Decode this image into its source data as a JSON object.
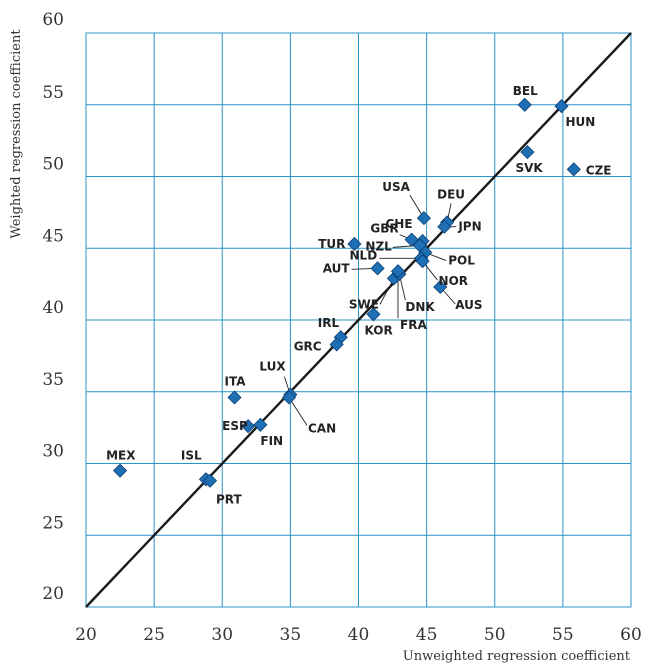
{
  "chart_data": {
    "type": "scatter",
    "xlabel": "Unweighted regression coefficient",
    "ylabel": "Weighted regression coefficient",
    "xlim": [
      20,
      60
    ],
    "ylim": [
      20,
      60
    ],
    "x_ticks": [
      20,
      25,
      30,
      35,
      40,
      45,
      50,
      55,
      60
    ],
    "y_ticks": [
      20,
      25,
      30,
      35,
      40,
      45,
      50,
      55,
      60
    ],
    "grid": true,
    "reference_line": "45-degree line y = x",
    "marker_color": "#1f6fb5",
    "grid_color": "#2b93c8",
    "points": [
      {
        "label": "BEL",
        "x": 52.2,
        "y": 55.0
      },
      {
        "label": "HUN",
        "x": 54.9,
        "y": 54.9
      },
      {
        "label": "SVK",
        "x": 52.4,
        "y": 51.7
      },
      {
        "label": "CZE",
        "x": 55.8,
        "y": 50.5
      },
      {
        "label": "USA",
        "x": 44.8,
        "y": 47.1
      },
      {
        "label": "DEU",
        "x": 46.5,
        "y": 46.8
      },
      {
        "label": "JPN",
        "x": 46.3,
        "y": 46.5
      },
      {
        "label": "CHE",
        "x": 44.7,
        "y": 45.5
      },
      {
        "label": "GBR",
        "x": 43.9,
        "y": 45.6
      },
      {
        "label": "NZL",
        "x": 44.5,
        "y": 45.2
      },
      {
        "label": "TUR",
        "x": 39.7,
        "y": 45.3
      },
      {
        "label": "POL",
        "x": 44.9,
        "y": 44.7
      },
      {
        "label": "NLD",
        "x": 44.6,
        "y": 44.3
      },
      {
        "label": "NOR",
        "x": 44.7,
        "y": 44.1
      },
      {
        "label": "AUT",
        "x": 41.4,
        "y": 43.6
      },
      {
        "label": "SWE",
        "x": 42.6,
        "y": 42.9
      },
      {
        "label": "DNK",
        "x": 43.0,
        "y": 43.2
      },
      {
        "label": "FRA",
        "x": 42.9,
        "y": 43.4
      },
      {
        "label": "AUS",
        "x": 46.0,
        "y": 42.3
      },
      {
        "label": "KOR",
        "x": 41.1,
        "y": 40.4
      },
      {
        "label": "IRL",
        "x": 38.7,
        "y": 38.8
      },
      {
        "label": "GRC",
        "x": 38.4,
        "y": 38.3
      },
      {
        "label": "LUX",
        "x": 35.0,
        "y": 34.8
      },
      {
        "label": "CAN",
        "x": 34.9,
        "y": 34.6
      },
      {
        "label": "ITA",
        "x": 30.9,
        "y": 34.6
      },
      {
        "label": "ESP",
        "x": 31.9,
        "y": 32.6
      },
      {
        "label": "FIN",
        "x": 32.8,
        "y": 32.7
      },
      {
        "label": "ISL",
        "x": 28.8,
        "y": 28.9
      },
      {
        "label": "PRT",
        "x": 29.1,
        "y": 28.8
      },
      {
        "label": "MEX",
        "x": 22.5,
        "y": 29.5
      }
    ]
  }
}
